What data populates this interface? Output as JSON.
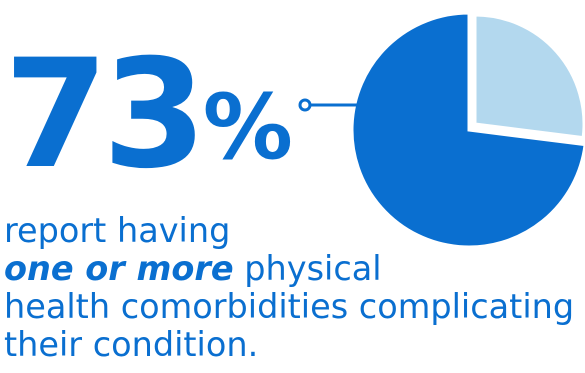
{
  "stat": {
    "number": "73",
    "percent": "%"
  },
  "caption": {
    "line1": "report having",
    "emphasis": "one or more",
    "line2_rest": " physical",
    "line3": "health comorbidities complicating",
    "line4": "their condition."
  },
  "chart_data": {
    "type": "pie",
    "values": [
      73,
      27
    ],
    "colors": [
      "#0a6fd0",
      "#b3d8ee"
    ],
    "title": "",
    "legend": "none"
  },
  "colors": {
    "accent": "#0a6fd0",
    "light": "#b3d8ee",
    "background": "#ffffff"
  }
}
